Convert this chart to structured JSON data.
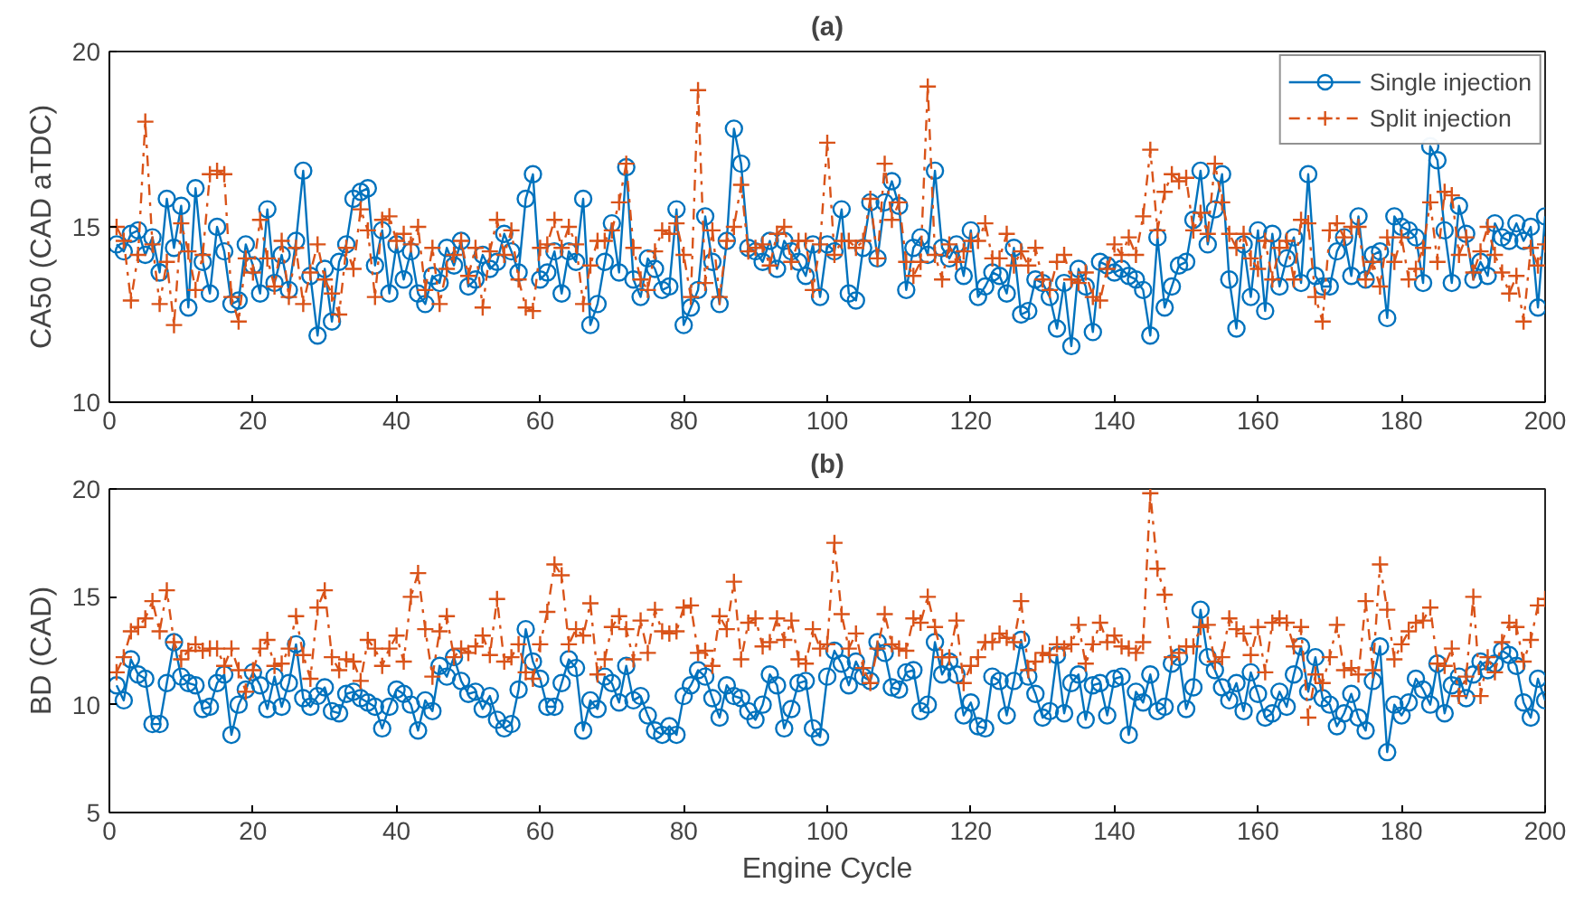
{
  "chart_data": [
    {
      "type": "line",
      "title": "(a)",
      "ylabel": "CA50 (CAD aTDC)",
      "xlim": [
        0,
        200
      ],
      "xticks": [
        0,
        20,
        40,
        60,
        80,
        100,
        120,
        140,
        160,
        180,
        200
      ],
      "ylim": [
        10,
        20
      ],
      "yticks": [
        10,
        15,
        20
      ],
      "grid": false,
      "legend": "top right",
      "x": [
        1,
        2,
        3,
        4,
        5,
        6,
        7,
        8,
        9,
        10,
        11,
        12,
        13,
        14,
        15,
        16,
        17,
        18,
        19,
        20,
        21,
        22,
        23,
        24,
        25,
        26,
        27,
        28,
        29,
        30,
        31,
        32,
        33,
        34,
        35,
        36,
        37,
        38,
        39,
        40,
        41,
        42,
        43,
        44,
        45,
        46,
        47,
        48,
        49,
        50,
        51,
        52,
        53,
        54,
        55,
        56,
        57,
        58,
        59,
        60,
        61,
        62,
        63,
        64,
        65,
        66,
        67,
        68,
        69,
        70,
        71,
        72,
        73,
        74,
        75,
        76,
        77,
        78,
        79,
        80,
        81,
        82,
        83,
        84,
        85,
        86,
        87,
        88,
        89,
        90,
        91,
        92,
        93,
        94,
        95,
        96,
        97,
        98,
        99,
        100,
        101,
        102,
        103,
        104,
        105,
        106,
        107,
        108,
        109,
        110,
        111,
        112,
        113,
        114,
        115,
        116,
        117,
        118,
        119,
        120,
        121,
        122,
        123,
        124,
        125,
        126,
        127,
        128,
        129,
        130,
        131,
        132,
        133,
        134,
        135,
        136,
        137,
        138,
        139,
        140,
        141,
        142,
        143,
        144,
        145,
        146,
        147,
        148,
        149,
        150,
        151,
        152,
        153,
        154,
        155,
        156,
        157,
        158,
        159,
        160,
        161,
        162,
        163,
        164,
        165,
        166,
        167,
        168,
        169,
        170,
        171,
        172,
        173,
        174,
        175,
        176,
        177,
        178,
        179,
        180,
        181,
        182,
        183,
        184,
        185,
        186,
        187,
        188,
        189,
        190,
        191,
        192,
        193,
        194,
        195,
        196,
        197,
        198,
        199,
        200
      ],
      "series": [
        {
          "name": "Single injection",
          "color": "#0072bd",
          "marker": "circle",
          "line_style": "solid",
          "values": [
            14.5,
            14.3,
            14.8,
            14.9,
            14.2,
            14.7,
            13.7,
            15.8,
            14.4,
            15.6,
            12.7,
            16.1,
            14.0,
            13.1,
            15.0,
            14.3,
            12.8,
            12.9,
            14.5,
            13.9,
            13.1,
            15.5,
            13.4,
            14.2,
            13.2,
            14.6,
            16.6,
            13.6,
            11.9,
            13.8,
            12.3,
            14.0,
            14.5,
            15.8,
            16.0,
            16.1,
            13.9,
            14.9,
            13.1,
            14.5,
            13.5,
            14.3,
            13.1,
            12.8,
            13.6,
            13.4,
            14.4,
            13.9,
            14.6,
            13.3,
            13.5,
            14.2,
            13.8,
            14.0,
            14.8,
            14.3,
            13.7,
            15.8,
            16.5,
            13.5,
            13.7,
            14.3,
            13.1,
            14.3,
            14.0,
            15.8,
            12.2,
            12.8,
            14.0,
            15.1,
            13.7,
            16.7,
            13.5,
            13.0,
            14.1,
            13.8,
            13.2,
            13.3,
            15.5,
            12.2,
            12.7,
            13.2,
            15.3,
            14.0,
            12.8,
            14.6,
            17.8,
            16.8,
            14.4,
            14.3,
            14.0,
            14.6,
            13.8,
            14.6,
            14.3,
            14.0,
            13.6,
            14.5,
            13.0,
            14.5,
            14.3,
            15.5,
            13.1,
            12.9,
            14.4,
            15.7,
            14.1,
            15.7,
            16.3,
            15.6,
            13.2,
            14.4,
            14.7,
            14.2,
            16.6,
            14.4,
            14.1,
            14.5,
            13.6,
            14.9,
            13.0,
            13.3,
            13.7,
            13.6,
            13.1,
            14.4,
            12.5,
            12.6,
            13.5,
            13.4,
            13.0,
            12.1,
            13.4,
            11.6,
            13.8,
            13.3,
            12.0,
            14.0,
            13.9,
            13.7,
            13.8,
            13.6,
            13.5,
            13.2,
            11.9,
            14.7,
            12.7,
            13.3,
            13.9,
            14.0,
            15.2,
            16.6,
            14.5,
            15.5,
            16.5,
            13.5,
            12.1,
            14.5,
            13.0,
            14.9,
            12.6,
            14.8,
            13.3,
            14.1,
            14.7,
            13.4,
            16.5,
            13.6,
            13.3,
            13.3,
            14.3,
            14.7,
            13.6,
            15.3,
            13.5,
            14.2,
            14.3,
            12.4,
            15.3,
            15.0,
            14.9,
            14.7,
            13.4,
            17.3,
            16.9,
            14.9,
            13.4,
            15.6,
            14.8,
            13.5,
            14.0,
            13.6,
            15.1,
            14.7,
            14.6,
            15.1,
            14.6,
            15.0,
            12.7,
            15.3
          ]
        },
        {
          "name": "Split injection",
          "color": "#d95319",
          "marker": "cross",
          "line_style": "dashdot",
          "values": [
            15.0,
            14.6,
            12.9,
            14.2,
            18.0,
            14.5,
            12.8,
            14.0,
            12.2,
            15.1,
            14.3,
            13.2,
            14.2,
            16.5,
            16.6,
            16.5,
            13.0,
            12.3,
            14.1,
            13.7,
            15.2,
            14.1,
            13.3,
            14.6,
            13.0,
            14.4,
            12.8,
            13.7,
            14.5,
            13.5,
            13.1,
            12.5,
            14.4,
            13.8,
            15.5,
            14.9,
            13.0,
            15.2,
            15.3,
            14.6,
            14.8,
            14.5,
            15.0,
            13.2,
            14.4,
            12.8,
            13.8,
            14.2,
            14.6,
            13.6,
            14.4,
            12.7,
            14.3,
            15.2,
            14.2,
            14.9,
            13.5,
            12.7,
            12.6,
            14.4,
            14.5,
            15.2,
            14.4,
            15.0,
            14.5,
            12.8,
            13.9,
            14.6,
            14.6,
            14.9,
            15.7,
            16.8,
            14.4,
            13.5,
            13.2,
            14.3,
            14.9,
            14.8,
            15.1,
            14.2,
            13.0,
            18.9,
            13.4,
            14.9,
            13.0,
            14.6,
            15.0,
            16.2,
            14.3,
            14.4,
            14.5,
            13.9,
            14.8,
            15.0,
            14.0,
            14.6,
            14.6,
            13.2,
            14.5,
            17.4,
            14.2,
            14.6,
            14.6,
            14.4,
            14.6,
            15.8,
            14.1,
            16.8,
            15.2,
            15.7,
            14.0,
            13.6,
            14.0,
            19.0,
            14.2,
            13.5,
            14.5,
            14.0,
            14.3,
            14.6,
            14.6,
            15.1,
            14.1,
            14.1,
            14.8,
            13.9,
            14.3,
            13.9,
            14.4,
            13.5,
            13.2,
            14.0,
            14.2,
            13.5,
            13.4,
            13.7,
            13.0,
            12.9,
            13.8,
            14.5,
            14.2,
            14.7,
            14.2,
            15.3,
            17.2,
            14.9,
            16.0,
            16.5,
            16.3,
            16.4,
            14.9,
            15.4,
            14.8,
            16.8,
            15.7,
            14.8,
            14.4,
            14.8,
            14.1,
            13.8,
            14.6,
            13.5,
            14.4,
            14.6,
            13.5,
            15.2,
            15.1,
            13.0,
            12.3,
            14.9,
            15.1,
            14.7,
            15.0,
            15.0,
            13.5,
            14.0,
            13.3,
            14.7,
            14.0,
            14.7,
            13.5,
            13.8,
            14.4,
            15.7,
            14.0,
            16.0,
            15.9,
            14.2,
            14.7,
            13.7,
            14.3,
            15.0,
            14.2,
            13.7,
            13.1,
            13.6,
            12.3,
            14.4,
            13.9,
            14.5
          ]
        }
      ]
    },
    {
      "type": "line",
      "title": "(b)",
      "ylabel": "BD (CAD)",
      "xlabel": "Engine Cycle",
      "xlim": [
        0,
        200
      ],
      "xticks": [
        0,
        20,
        40,
        60,
        80,
        100,
        120,
        140,
        160,
        180,
        200
      ],
      "ylim": [
        5,
        20
      ],
      "yticks": [
        5,
        10,
        15,
        20
      ],
      "grid": false,
      "x": [
        1,
        2,
        3,
        4,
        5,
        6,
        7,
        8,
        9,
        10,
        11,
        12,
        13,
        14,
        15,
        16,
        17,
        18,
        19,
        20,
        21,
        22,
        23,
        24,
        25,
        26,
        27,
        28,
        29,
        30,
        31,
        32,
        33,
        34,
        35,
        36,
        37,
        38,
        39,
        40,
        41,
        42,
        43,
        44,
        45,
        46,
        47,
        48,
        49,
        50,
        51,
        52,
        53,
        54,
        55,
        56,
        57,
        58,
        59,
        60,
        61,
        62,
        63,
        64,
        65,
        66,
        67,
        68,
        69,
        70,
        71,
        72,
        73,
        74,
        75,
        76,
        77,
        78,
        79,
        80,
        81,
        82,
        83,
        84,
        85,
        86,
        87,
        88,
        89,
        90,
        91,
        92,
        93,
        94,
        95,
        96,
        97,
        98,
        99,
        100,
        101,
        102,
        103,
        104,
        105,
        106,
        107,
        108,
        109,
        110,
        111,
        112,
        113,
        114,
        115,
        116,
        117,
        118,
        119,
        120,
        121,
        122,
        123,
        124,
        125,
        126,
        127,
        128,
        129,
        130,
        131,
        132,
        133,
        134,
        135,
        136,
        137,
        138,
        139,
        140,
        141,
        142,
        143,
        144,
        145,
        146,
        147,
        148,
        149,
        150,
        151,
        152,
        153,
        154,
        155,
        156,
        157,
        158,
        159,
        160,
        161,
        162,
        163,
        164,
        165,
        166,
        167,
        168,
        169,
        170,
        171,
        172,
        173,
        174,
        175,
        176,
        177,
        178,
        179,
        180,
        181,
        182,
        183,
        184,
        185,
        186,
        187,
        188,
        189,
        190,
        191,
        192,
        193,
        194,
        195,
        196,
        197,
        198,
        199,
        200
      ],
      "series": [
        {
          "color": "#0072bd",
          "marker": "circle",
          "line_style": "solid",
          "values": [
            10.9,
            10.2,
            12.1,
            11.4,
            11.2,
            9.1,
            9.1,
            11.0,
            12.9,
            11.3,
            11.0,
            10.9,
            9.8,
            9.9,
            11.0,
            11.4,
            8.6,
            10.0,
            10.7,
            11.5,
            10.9,
            9.8,
            11.3,
            9.9,
            11.0,
            12.8,
            10.3,
            9.9,
            10.4,
            10.8,
            9.7,
            9.6,
            10.5,
            10.6,
            10.3,
            10.1,
            9.9,
            8.9,
            9.9,
            10.7,
            10.5,
            10.0,
            8.8,
            10.2,
            9.7,
            11.8,
            11.3,
            12.2,
            11.1,
            10.5,
            10.6,
            9.8,
            10.4,
            9.3,
            8.9,
            9.1,
            10.7,
            13.5,
            12.0,
            11.2,
            9.9,
            9.9,
            11.0,
            12.1,
            11.7,
            8.8,
            10.2,
            9.8,
            11.3,
            11.0,
            10.1,
            11.8,
            10.2,
            10.4,
            9.5,
            8.8,
            8.6,
            9.0,
            8.6,
            10.4,
            10.9,
            11.6,
            11.3,
            10.3,
            9.4,
            10.9,
            10.4,
            10.3,
            9.7,
            9.3,
            10.0,
            11.4,
            10.9,
            8.9,
            9.8,
            11.0,
            11.1,
            8.9,
            8.5,
            11.3,
            12.5,
            11.9,
            10.9,
            12.0,
            11.3,
            11.1,
            12.9,
            12.4,
            10.8,
            10.7,
            11.5,
            11.6,
            9.7,
            10.0,
            12.9,
            11.4,
            12.0,
            11.4,
            9.5,
            10.1,
            9.0,
            8.9,
            11.3,
            11.1,
            9.5,
            11.1,
            13.0,
            11.3,
            10.5,
            9.4,
            9.7,
            12.3,
            9.6,
            11.0,
            11.4,
            9.3,
            10.9,
            11.0,
            9.5,
            11.2,
            11.3,
            8.6,
            10.6,
            10.1,
            11.4,
            9.7,
            9.9,
            11.9,
            12.2,
            9.8,
            10.8,
            14.4,
            12.2,
            11.6,
            10.8,
            10.2,
            11.0,
            9.7,
            11.5,
            10.5,
            9.4,
            9.6,
            10.6,
            9.9,
            11.4,
            12.7,
            10.6,
            12.2,
            10.3,
            10.0,
            9.0,
            9.6,
            10.5,
            9.4,
            8.8,
            11.1,
            12.7,
            7.8,
            10.0,
            9.5,
            10.1,
            11.2,
            10.7,
            10.0,
            11.9,
            9.6,
            10.9,
            11.3,
            10.3,
            11.4,
            12.0,
            11.6,
            11.9,
            12.5,
            12.3,
            11.8,
            10.1,
            9.4,
            11.2,
            10.2
          ]
        },
        {
          "color": "#d95319",
          "marker": "cross",
          "line_style": "dashdot",
          "values": [
            11.5,
            12.2,
            13.4,
            13.6,
            14.0,
            14.8,
            13.4,
            15.3,
            12.9,
            12.1,
            12.5,
            12.8,
            12.5,
            12.6,
            12.6,
            11.8,
            12.6,
            11.6,
            10.6,
            11.6,
            12.6,
            13.0,
            11.8,
            11.9,
            12.6,
            14.1,
            12.3,
            11.2,
            14.5,
            15.3,
            12.2,
            11.6,
            12.1,
            12.0,
            11.1,
            13.0,
            12.6,
            11.8,
            12.6,
            13.2,
            12.0,
            15.0,
            16.1,
            13.5,
            11.3,
            13.4,
            14.1,
            12.2,
            12.6,
            12.4,
            12.7,
            13.2,
            12.3,
            14.9,
            12.0,
            12.2,
            12.8,
            11.5,
            11.2,
            12.8,
            14.3,
            16.5,
            16.0,
            12.8,
            13.5,
            13.2,
            14.7,
            11.4,
            12.1,
            13.6,
            14.1,
            13.5,
            12.1,
            13.9,
            12.4,
            14.4,
            13.4,
            13.3,
            13.4,
            14.5,
            14.6,
            12.4,
            12.5,
            11.8,
            14.1,
            13.5,
            15.7,
            12.1,
            13.8,
            14.0,
            12.7,
            12.9,
            14.0,
            13.0,
            13.9,
            12.1,
            11.9,
            13.5,
            12.6,
            12.8,
            17.5,
            14.2,
            12.6,
            13.3,
            11.7,
            11.0,
            12.6,
            14.2,
            12.8,
            12.6,
            12.5,
            14.0,
            13.8,
            15.0,
            13.6,
            12.2,
            12.2,
            13.9,
            11.0,
            11.8,
            12.2,
            12.9,
            12.9,
            13.3,
            13.1,
            12.9,
            14.8,
            11.6,
            12.0,
            12.4,
            12.3,
            12.8,
            12.6,
            12.8,
            13.7,
            11.9,
            12.8,
            13.8,
            12.9,
            13.2,
            12.7,
            12.6,
            12.4,
            12.9,
            19.8,
            16.3,
            15.1,
            12.2,
            12.4,
            12.7,
            12.7,
            13.6,
            13.7,
            12.0,
            12.2,
            14.0,
            13.5,
            13.3,
            12.3,
            13.6,
            11.5,
            13.8,
            14.0,
            13.8,
            12.7,
            13.6,
            9.4,
            11.4,
            11.0,
            12.2,
            13.7,
            11.6,
            11.7,
            11.4,
            14.8,
            11.6,
            16.5,
            14.4,
            12.1,
            12.8,
            13.4,
            13.8,
            13.9,
            14.5,
            11.9,
            11.8,
            12.6,
            10.4,
            11.3,
            15.0,
            10.4,
            12.2,
            11.5,
            12.9,
            13.8,
            13.6,
            12.0,
            13.0,
            14.6,
            14.9
          ]
        }
      ]
    }
  ]
}
